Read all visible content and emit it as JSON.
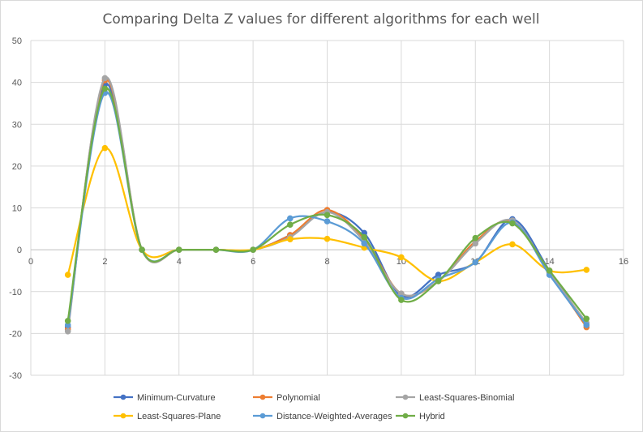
{
  "chart_data": {
    "type": "line",
    "title": "Comparing Delta Z values for different algorithms for each well",
    "xlabel": "",
    "ylabel": "",
    "xlim": [
      0,
      16
    ],
    "ylim": [
      -30,
      50
    ],
    "x_ticks": [
      "0",
      "2",
      "4",
      "6",
      "8",
      "10",
      "12",
      "14",
      "16"
    ],
    "y_ticks": [
      "50",
      "40",
      "30",
      "20",
      "10",
      "0",
      "-10",
      "-20",
      "-30"
    ],
    "grid": true,
    "smooth": true,
    "legend_position": "bottom",
    "x": [
      1,
      2,
      3,
      4,
      5,
      6,
      7,
      8,
      9,
      10,
      11,
      12,
      13,
      14,
      15
    ],
    "series": [
      {
        "name": "Minimum-Curvature",
        "color": "#4472C4",
        "values": [
          -18.5,
          39.5,
          0,
          0,
          0,
          0,
          3.5,
          9,
          4,
          -11,
          -6,
          -3,
          7.3,
          -5,
          -18
        ]
      },
      {
        "name": "Polynomial",
        "color": "#ED7D31",
        "values": [
          -19,
          40.5,
          0,
          0,
          0,
          0,
          3.5,
          9.5,
          2.5,
          -10.5,
          -7.5,
          2,
          6.8,
          -5.5,
          -18.5
        ]
      },
      {
        "name": "Least-Squares-Binomial",
        "color": "#A5A5A5",
        "values": [
          -19.5,
          41,
          0,
          0,
          0,
          0,
          3,
          9,
          2,
          -10.5,
          -7.5,
          1.5,
          7,
          -5.5,
          -17.5
        ]
      },
      {
        "name": "Least-Squares-Plane",
        "color": "#FFC000",
        "values": [
          -6,
          24.3,
          0,
          0,
          0,
          0,
          2.5,
          2.6,
          0.5,
          -1.8,
          -7.5,
          -3,
          1.3,
          -5,
          -4.8
        ]
      },
      {
        "name": "Distance-Weighted-Averages",
        "color": "#5B9BD5",
        "values": [
          -18,
          37.5,
          0,
          0,
          0,
          0,
          7.5,
          6.8,
          1.5,
          -11.5,
          -7,
          -3,
          6.5,
          -6,
          -18
        ]
      },
      {
        "name": "Hybrid",
        "color": "#70AD47",
        "values": [
          -17,
          38.5,
          0,
          0,
          0,
          0,
          6,
          8.3,
          3,
          -12,
          -7.5,
          2.8,
          6.3,
          -5,
          -16.5
        ]
      }
    ]
  }
}
